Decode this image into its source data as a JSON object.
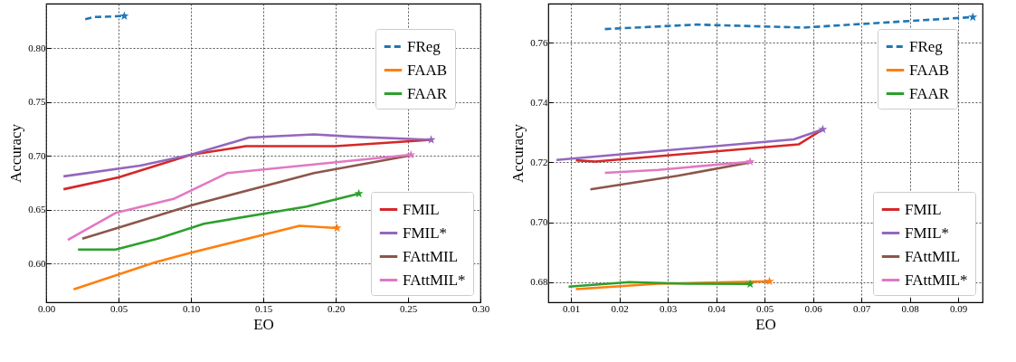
{
  "chart_data": [
    {
      "type": "line",
      "xlabel": "EO",
      "ylabel": "Accuracy",
      "grid": true,
      "legend": "right",
      "xlim": [
        0,
        0.3
      ],
      "xticks": [
        {
          "value": 0,
          "label": "0.00"
        },
        {
          "value": 0.05,
          "label": "0.05"
        },
        {
          "value": 0.1,
          "label": "0.10"
        },
        {
          "value": 0.15,
          "label": "0.15"
        },
        {
          "value": 0.2,
          "label": "0.20"
        },
        {
          "value": 0.25,
          "label": "0.25"
        },
        {
          "value": 0.3,
          "label": "0.30"
        }
      ],
      "ylim": [
        0.564,
        0.8415
      ],
      "yticks": [
        {
          "value": 0.6,
          "label": "0.60"
        },
        {
          "value": 0.65,
          "label": "0.65"
        },
        {
          "value": 0.7,
          "label": "0.70"
        },
        {
          "value": 0.75,
          "label": "0.75"
        },
        {
          "value": 0.8,
          "label": "0.80"
        }
      ],
      "series": [
        {
          "name": "FReg",
          "color": "#1f77b4",
          "line_style": "dashed",
          "x": [
            0.027,
            0.033,
            0.054
          ],
          "values": [
            0.827,
            0.829,
            0.83
          ]
        },
        {
          "name": "FAAB",
          "color": "#ff7f0e",
          "x": [
            0.019,
            0.075,
            0.1,
            0.175,
            0.201
          ],
          "values": [
            0.576,
            0.601,
            0.61,
            0.635,
            0.633
          ]
        },
        {
          "name": "FAAR",
          "color": "#2ca02c",
          "x": [
            0.022,
            0.048,
            0.077,
            0.109,
            0.18,
            0.216
          ],
          "values": [
            0.613,
            0.613,
            0.623,
            0.637,
            0.653,
            0.665
          ]
        },
        {
          "name": "FMIL",
          "color": "#d62728",
          "x": [
            0.012,
            0.05,
            0.1,
            0.138,
            0.2,
            0.266
          ],
          "values": [
            0.669,
            0.68,
            0.701,
            0.709,
            0.709,
            0.715
          ]
        },
        {
          "name": "FMIL*",
          "color": "#9467bd",
          "x": [
            0.012,
            0.065,
            0.1,
            0.14,
            0.185,
            0.21,
            0.266
          ],
          "values": [
            0.681,
            0.691,
            0.701,
            0.717,
            0.72,
            0.718,
            0.715
          ]
        },
        {
          "name": "FAttMIL",
          "color": "#8c564b",
          "x": [
            0.025,
            0.1,
            0.185,
            0.25
          ],
          "values": [
            0.623,
            0.654,
            0.684,
            0.7
          ]
        },
        {
          "name": "FAttMIL*",
          "color": "#e377c2",
          "x": [
            0.015,
            0.048,
            0.088,
            0.125,
            0.252
          ],
          "values": [
            0.622,
            0.647,
            0.66,
            0.684,
            0.701
          ]
        },
        {
          "type": "scatter",
          "marker": "star",
          "color": "#1f77b4",
          "x": [
            0.054
          ],
          "values": [
            0.83
          ]
        },
        {
          "type": "scatter",
          "marker": "star",
          "color": "#ff7f0e",
          "x": [
            0.201
          ],
          "values": [
            0.633
          ]
        },
        {
          "type": "scatter",
          "marker": "star",
          "color": "#2ca02c",
          "x": [
            0.216
          ],
          "values": [
            0.665
          ]
        },
        {
          "type": "scatter",
          "marker": "star",
          "color": "#9467bd",
          "x": [
            0.266
          ],
          "values": [
            0.715
          ]
        },
        {
          "type": "scatter",
          "marker": "star",
          "color": "#e377c2",
          "x": [
            0.252
          ],
          "values": [
            0.701
          ]
        }
      ]
    },
    {
      "type": "line",
      "xlabel": "EO",
      "ylabel": "Accuracy",
      "grid": true,
      "legend": "right",
      "xlim": [
        0.0053,
        0.095
      ],
      "xticks": [
        0.01,
        0.02,
        0.03,
        0.04,
        0.05,
        0.06,
        0.07,
        0.08,
        0.09
      ],
      "ylim": [
        0.6733,
        0.773
      ],
      "yticks": [
        0.68,
        {
          "value": 0.7,
          "label": "0.70"
        },
        0.72,
        0.74,
        0.76
      ],
      "series": [
        {
          "name": "FReg",
          "color": "#1f77b4",
          "line_style": "dashed",
          "x": [
            0.017,
            0.036,
            0.058,
            0.093
          ],
          "values": [
            0.7645,
            0.766,
            0.765,
            0.7685
          ]
        },
        {
          "name": "FAAB",
          "color": "#ff7f0e",
          "x": [
            0.011,
            0.028,
            0.051
          ],
          "values": [
            0.6777,
            0.6795,
            0.6803
          ]
        },
        {
          "name": "FAAR",
          "color": "#2ca02c",
          "x": [
            0.0095,
            0.022,
            0.034,
            0.047
          ],
          "values": [
            0.6785,
            0.68,
            0.6795,
            0.6794
          ]
        },
        {
          "name": "FMIL",
          "color": "#d62728",
          "x": [
            0.011,
            0.015,
            0.057,
            0.062
          ],
          "values": [
            0.7207,
            0.7203,
            0.726,
            0.731
          ]
        },
        {
          "name": "FMIL*",
          "color": "#9467bd",
          "x": [
            0.007,
            0.056,
            0.062
          ],
          "values": [
            0.7208,
            0.7277,
            0.731
          ]
        },
        {
          "name": "FAttMIL",
          "color": "#8c564b",
          "x": [
            0.014,
            0.032,
            0.047
          ],
          "values": [
            0.711,
            0.7155,
            0.72
          ]
        },
        {
          "name": "FAttMIL*",
          "color": "#e377c2",
          "x": [
            0.017,
            0.028,
            0.047
          ],
          "values": [
            0.7165,
            0.7175,
            0.7202
          ]
        },
        {
          "type": "scatter",
          "marker": "star",
          "color": "#1f77b4",
          "x": [
            0.093
          ],
          "values": [
            0.7685
          ]
        },
        {
          "type": "scatter",
          "marker": "star",
          "color": "#ff7f0e",
          "x": [
            0.051
          ],
          "values": [
            0.6803
          ]
        },
        {
          "type": "scatter",
          "marker": "star",
          "color": "#2ca02c",
          "x": [
            0.047
          ],
          "values": [
            0.6794
          ]
        },
        {
          "type": "scatter",
          "marker": "star",
          "color": "#9467bd",
          "x": [
            0.062
          ],
          "values": [
            0.731
          ]
        },
        {
          "type": "scatter",
          "marker": "star",
          "color": "#e377c2",
          "x": [
            0.047
          ],
          "values": [
            0.7202
          ]
        }
      ]
    }
  ]
}
